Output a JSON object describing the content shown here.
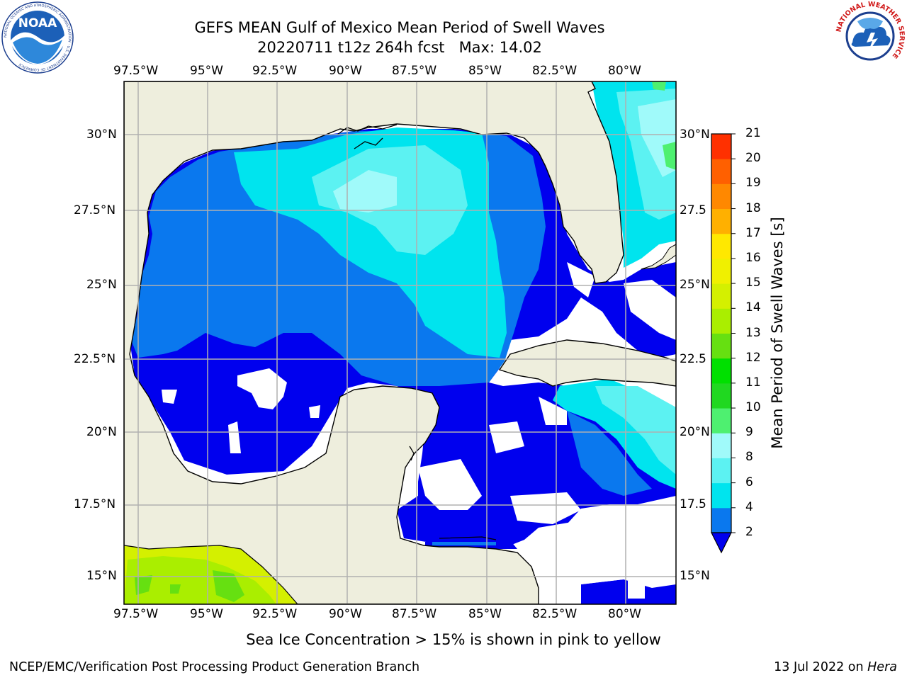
{
  "title": {
    "line1": "GEFS MEAN Gulf of Mexico Mean Period of Swell Waves",
    "line2": "20220711 t12z 264h fcst   Max: 14.02"
  },
  "map": {
    "lon_labels": [
      "97.5°W",
      "95°W",
      "92.5°W",
      "90°W",
      "87.5°W",
      "85°W",
      "82.5°W",
      "80°W"
    ],
    "lat_labels_left": [
      "30°N",
      "27.5°N",
      "25°N",
      "22.5°N",
      "20°N",
      "17.5°N",
      "15°N"
    ],
    "lat_labels_right": [
      "30°N",
      "27.5",
      "25°N",
      "22.5",
      "20°N",
      "17.5",
      "15°N"
    ],
    "grid": true,
    "colors": {
      "land": "#eeeedd",
      "ocean_undefined": "#ffffff",
      "coast": "#000000",
      "gridline": "#b0b0b0"
    }
  },
  "colorbar": {
    "title": "Mean Period of Swell Waves [s]",
    "tick_labels": [
      "2",
      "4",
      "6",
      "8",
      "9",
      "10",
      "11",
      "12",
      "13",
      "14",
      "15",
      "16",
      "17",
      "18",
      "19",
      "20",
      "21"
    ],
    "colors": [
      "#0000ee",
      "#0a78ee",
      "#00e4ee",
      "#5cf2f2",
      "#a0fafa",
      "#4ef070",
      "#20d820",
      "#00e000",
      "#66e011",
      "#aaee00",
      "#d4f000",
      "#f0f000",
      "#ffe800",
      "#ffb000",
      "#ff8800",
      "#ff6000",
      "#ff3000",
      "#ff0000"
    ],
    "extend": "min"
  },
  "footer": {
    "left": "NCEP/EMC/Verification Post Processing Product Generation Branch",
    "right_date": "13 Jul 2022 on ",
    "right_host": "Hera"
  },
  "note": "Sea Ice Concentration > 15% is shown in pink to yellow",
  "logos": {
    "noaa": "NOAA",
    "noaa_ring": "NATIONAL OCEANIC AND ATMOSPHERIC ADMINISTRATION · U.S. DEPARTMENT OF COMMERCE",
    "nws_ring": "NATIONAL WEATHER SERVICE"
  }
}
